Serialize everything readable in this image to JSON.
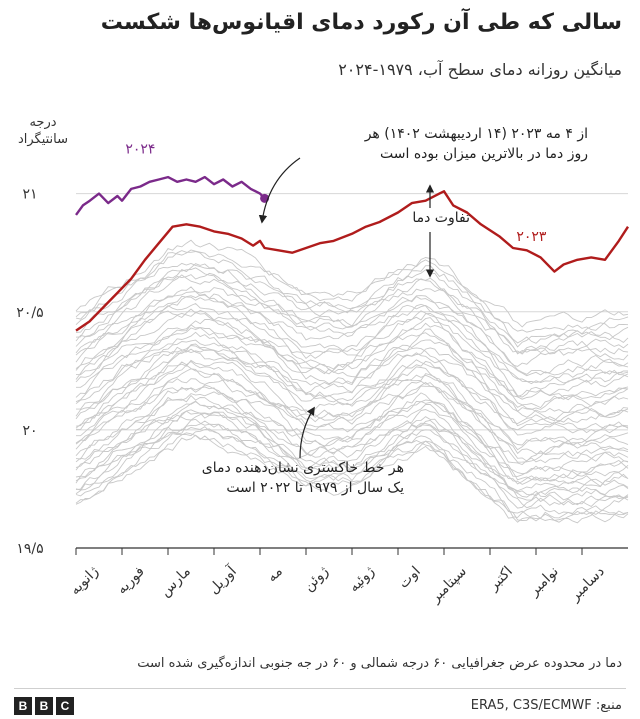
{
  "header": {
    "title": "سالی که طی آن  رکورد دمای اقیانوس‌ها شکست",
    "subtitle": "میانگین روزانه دمای سطح آب، ۱۹۷۹-۲۰۲۴"
  },
  "footer": {
    "note": "دما در محدوده عرض جغرافیایی ۶۰ درجه شمالی و ۶۰ در جه جنوبی اندازه‌گیری شده است",
    "source": "منبع: ERA5, C3S/ECMWF",
    "logo": [
      "B",
      "B",
      "C"
    ]
  },
  "annotations": {
    "record_line1": "از ۴ مه ۲۰۲۳ (۱۴ اردیبهشت ۱۴۰۲) هر",
    "record_line2": "روز دما در بالاترین میزان بوده است",
    "difference": "تفاوت دما",
    "grey_line1": "هر خط خاکستری نشان‌دهنده دمای",
    "grey_line2": "یک سال از ۱۹۷۹ تا ۲۰۲۲ است"
  },
  "colors": {
    "series_2024": "#7b2a8a",
    "series_2023": "#b01c1c",
    "historical": "#c8c8c8",
    "grid": "#d7d7d7"
  },
  "chart_data": {
    "type": "line",
    "title": "سالی که طی آن  رکورد دمای اقیانوس‌ها شکست",
    "subtitle": "میانگین روزانه دمای سطح آب، ۱۹۷۹-۲۰۲۴",
    "ylabel": "درجه سانتیگراد",
    "xlabel": "",
    "ylim": [
      19.5,
      21.1
    ],
    "yticks": [
      {
        "value": 21,
        "label": "۲۱"
      },
      {
        "value": 20.5,
        "label": "۲۰/۵"
      },
      {
        "value": 20,
        "label": "۲۰"
      },
      {
        "value": 19.5,
        "label": "۱۹/۵"
      }
    ],
    "grid": true,
    "categories": [
      "ژانویه",
      "فوریه",
      "مارس",
      "آوریل",
      "مه",
      "ژوئن",
      "ژوئیه",
      "اوت",
      "سپتامبر",
      "اکتبر",
      "نوامبر",
      "دسامبر"
    ],
    "series": [
      {
        "name": "۲۰۲۴",
        "label_month": 1.4,
        "label_value": 21.17,
        "points": [
          [
            0,
            20.91
          ],
          [
            0.15,
            20.95
          ],
          [
            0.3,
            20.97
          ],
          [
            0.5,
            21.0
          ],
          [
            0.7,
            20.96
          ],
          [
            0.9,
            20.99
          ],
          [
            1.0,
            20.97
          ],
          [
            1.2,
            21.02
          ],
          [
            1.4,
            21.03
          ],
          [
            1.6,
            21.05
          ],
          [
            1.8,
            21.06
          ],
          [
            2.0,
            21.07
          ],
          [
            2.2,
            21.05
          ],
          [
            2.4,
            21.06
          ],
          [
            2.6,
            21.05
          ],
          [
            2.8,
            21.07
          ],
          [
            3.0,
            21.04
          ],
          [
            3.2,
            21.06
          ],
          [
            3.4,
            21.03
          ],
          [
            3.6,
            21.05
          ],
          [
            3.8,
            21.02
          ],
          [
            4.0,
            21.0
          ],
          [
            4.1,
            20.98
          ]
        ]
      },
      {
        "name": "۲۰۲۳",
        "label_month": 9.9,
        "label_value": 20.8,
        "points": [
          [
            0,
            20.42
          ],
          [
            0.3,
            20.46
          ],
          [
            0.6,
            20.52
          ],
          [
            0.9,
            20.58
          ],
          [
            1.2,
            20.64
          ],
          [
            1.5,
            20.72
          ],
          [
            1.8,
            20.79
          ],
          [
            2.1,
            20.86
          ],
          [
            2.4,
            20.87
          ],
          [
            2.7,
            20.86
          ],
          [
            3.0,
            20.84
          ],
          [
            3.3,
            20.83
          ],
          [
            3.6,
            20.81
          ],
          [
            3.85,
            20.78
          ],
          [
            4.0,
            20.8
          ],
          [
            4.1,
            20.77
          ],
          [
            4.4,
            20.76
          ],
          [
            4.7,
            20.75
          ],
          [
            5.0,
            20.77
          ],
          [
            5.3,
            20.79
          ],
          [
            5.6,
            20.8
          ],
          [
            6.0,
            20.83
          ],
          [
            6.3,
            20.86
          ],
          [
            6.6,
            20.88
          ],
          [
            7.0,
            20.92
          ],
          [
            7.3,
            20.96
          ],
          [
            7.6,
            20.97
          ],
          [
            7.9,
            21.0
          ],
          [
            8.0,
            21.01
          ],
          [
            8.2,
            20.95
          ],
          [
            8.5,
            20.92
          ],
          [
            8.8,
            20.87
          ],
          [
            9.2,
            20.82
          ],
          [
            9.5,
            20.77
          ],
          [
            9.8,
            20.76
          ],
          [
            10.1,
            20.73
          ],
          [
            10.4,
            20.67
          ],
          [
            10.6,
            20.7
          ],
          [
            10.9,
            20.72
          ],
          [
            11.2,
            20.73
          ],
          [
            11.5,
            20.72
          ],
          [
            11.8,
            20.8
          ],
          [
            12.0,
            20.86
          ]
        ]
      }
    ],
    "historical_series": {
      "years": [
        1979,
        2022
      ],
      "count": 44,
      "mean_profile": [
        [
          0,
          20.05
        ],
        [
          1,
          20.18
        ],
        [
          2,
          20.3
        ],
        [
          2.5,
          20.33
        ],
        [
          3,
          20.32
        ],
        [
          4,
          20.24
        ],
        [
          5,
          20.12
        ],
        [
          6,
          20.12
        ],
        [
          7,
          20.24
        ],
        [
          7.6,
          20.28
        ],
        [
          8,
          20.24
        ],
        [
          9,
          20.08
        ],
        [
          9.6,
          19.97
        ],
        [
          10,
          19.98
        ],
        [
          11,
          20.0
        ],
        [
          12,
          20.02
        ]
      ],
      "spread": [
        -0.36,
        0.46
      ]
    }
  }
}
